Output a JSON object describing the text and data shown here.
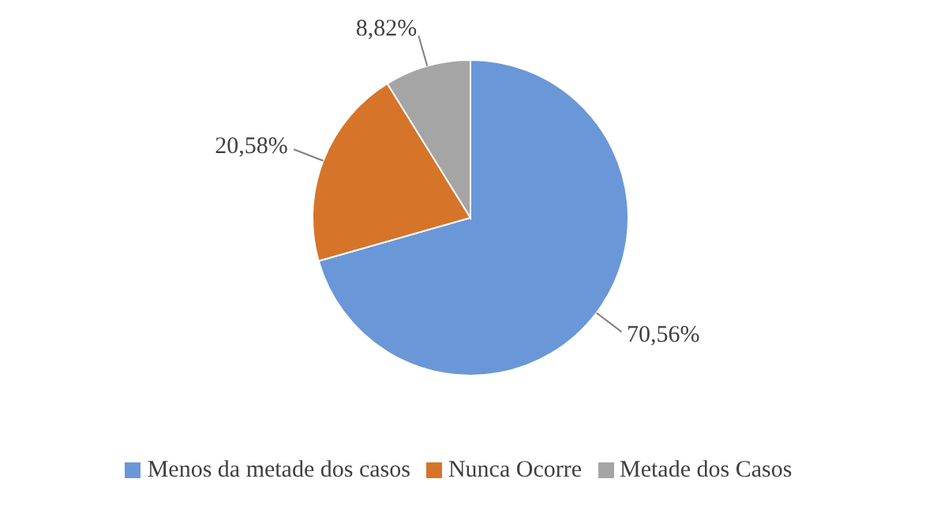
{
  "chart_data": {
    "type": "pie",
    "categories": [
      "Menos da metade dos casos",
      "Nunca Ocorre",
      "Metade dos Casos"
    ],
    "values": [
      70.56,
      20.58,
      8.82
    ],
    "value_labels": [
      "70,56%",
      "20,58%",
      "8,82%"
    ],
    "colors": [
      "#6a97d8",
      "#d6742a",
      "#a5a5a5"
    ],
    "legend": "bottom"
  }
}
